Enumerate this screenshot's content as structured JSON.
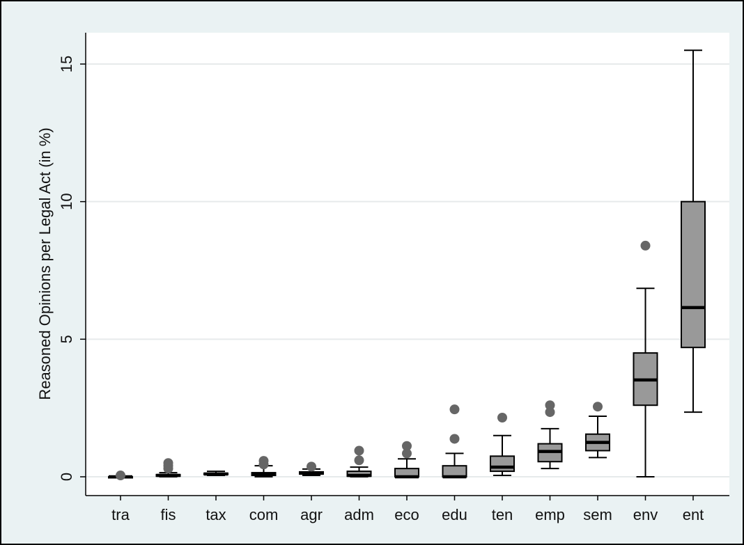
{
  "chart_data": {
    "type": "boxplot",
    "title": "",
    "xlabel": "",
    "ylabel": "Reasoned Opinions per Legal Act (in %)",
    "ylim": [
      -0.6,
      16.1
    ],
    "yticks": [
      0,
      5,
      10,
      15
    ],
    "ytick_labels": [
      "0",
      "5",
      "10",
      "15"
    ],
    "grid": true,
    "legend": "none",
    "categories": [
      "tra",
      "fis",
      "tax",
      "com",
      "agr",
      "adm",
      "eco",
      "edu",
      "ten",
      "emp",
      "sem",
      "env",
      "ent"
    ],
    "boxes": [
      {
        "label": "tra",
        "min": 0.0,
        "q1": 0.0,
        "median": 0.0,
        "q3": 0.0,
        "max": 0.0,
        "outliers": [
          0.05
        ]
      },
      {
        "label": "fis",
        "min": 0.0,
        "q1": 0.02,
        "median": 0.05,
        "q3": 0.08,
        "max": 0.15,
        "outliers": [
          0.3,
          0.4,
          0.5
        ]
      },
      {
        "label": "tax",
        "min": 0.05,
        "q1": 0.08,
        "median": 0.1,
        "q3": 0.13,
        "max": 0.2,
        "outliers": []
      },
      {
        "label": "com",
        "min": 0.0,
        "q1": 0.05,
        "median": 0.1,
        "q3": 0.15,
        "max": 0.4,
        "outliers": [
          0.45,
          0.58
        ]
      },
      {
        "label": "agr",
        "min": 0.05,
        "q1": 0.1,
        "median": 0.13,
        "q3": 0.18,
        "max": 0.28,
        "outliers": [
          0.37
        ]
      },
      {
        "label": "adm",
        "min": 0.0,
        "q1": 0.02,
        "median": 0.05,
        "q3": 0.2,
        "max": 0.35,
        "outliers": [
          0.6,
          0.95
        ]
      },
      {
        "label": "eco",
        "min": 0.0,
        "q1": 0.0,
        "median": 0.0,
        "q3": 0.3,
        "max": 0.65,
        "outliers": [
          0.85,
          1.12
        ]
      },
      {
        "label": "edu",
        "min": 0.0,
        "q1": 0.0,
        "median": 0.0,
        "q3": 0.4,
        "max": 0.85,
        "outliers": [
          1.38,
          2.45
        ]
      },
      {
        "label": "ten",
        "min": 0.05,
        "q1": 0.2,
        "median": 0.35,
        "q3": 0.75,
        "max": 1.5,
        "outliers": [
          2.15
        ]
      },
      {
        "label": "emp",
        "min": 0.3,
        "q1": 0.55,
        "median": 0.92,
        "q3": 1.2,
        "max": 1.75,
        "outliers": [
          2.35,
          2.6
        ]
      },
      {
        "label": "sem",
        "min": 0.7,
        "q1": 0.95,
        "median": 1.25,
        "q3": 1.55,
        "max": 2.2,
        "outliers": [
          2.55
        ]
      },
      {
        "label": "env",
        "min": 0.0,
        "q1": 2.6,
        "median": 3.52,
        "q3": 4.5,
        "max": 6.85,
        "outliers": [
          8.4
        ]
      },
      {
        "label": "ent",
        "min": 2.35,
        "q1": 4.7,
        "median": 6.15,
        "q3": 10.0,
        "max": 15.5,
        "outliers": []
      }
    ],
    "colors": {
      "outer_background": "#eaf2f3",
      "plot_background": "#ffffff",
      "gridline": "#e6eaeb",
      "box_fill": "#999999",
      "box_stroke": "#000000",
      "median": "#000000",
      "whisker": "#000000",
      "outlier": "#666666",
      "frame": "#000000"
    }
  }
}
